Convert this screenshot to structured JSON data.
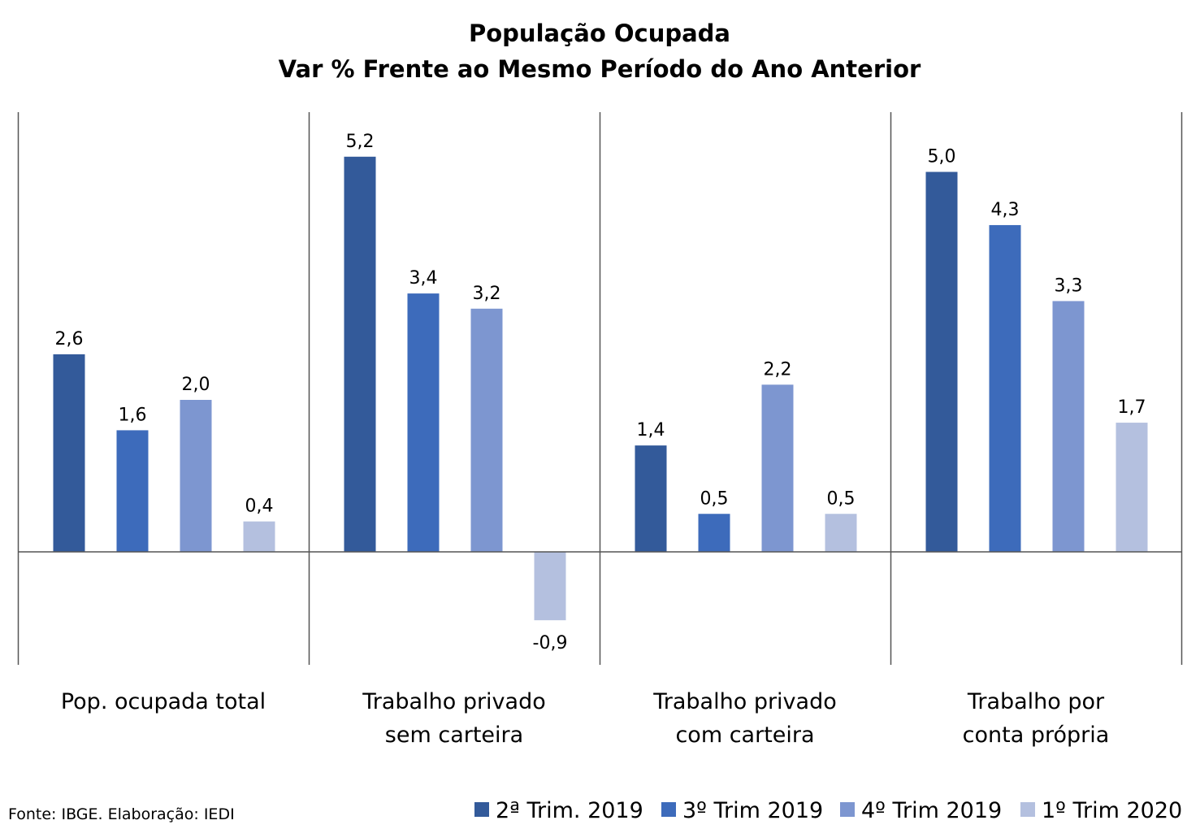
{
  "source": "Fonte: IBGE. Elaboração: IEDI",
  "chart_data": {
    "type": "bar",
    "title": [
      "População Ocupada",
      "Var % Frente ao Mesmo Período do Ano Anterior"
    ],
    "xlabel": "",
    "ylabel": "",
    "grid": false,
    "legend_position": "bottom-right",
    "categories": [
      [
        "Pop. ocupada total"
      ],
      [
        "Trabalho privado",
        "sem carteira"
      ],
      [
        "Trabalho privado",
        "com carteira"
      ],
      [
        "Trabalho por",
        "conta própria"
      ]
    ],
    "series": [
      {
        "name": "2ª Trim. 2019",
        "color": "#335a9a",
        "values": [
          2.6,
          5.2,
          1.4,
          5.0
        ],
        "labels": [
          "2,6",
          "5,2",
          "1,4",
          "5,0"
        ]
      },
      {
        "name": "3º Trim 2019",
        "color": "#3d6bbb",
        "values": [
          1.6,
          3.4,
          0.5,
          4.3
        ],
        "labels": [
          "1,6",
          "3,4",
          "0,5",
          "4,3"
        ]
      },
      {
        "name": "4º Trim 2019",
        "color": "#7d96d0",
        "values": [
          2.0,
          3.2,
          2.2,
          3.3
        ],
        "labels": [
          "2,0",
          "3,2",
          "2,2",
          "3,3"
        ]
      },
      {
        "name": "1º Trim 2020",
        "color": "#b4c0df",
        "values": [
          0.4,
          -0.9,
          0.5,
          1.7
        ],
        "labels": [
          "0,4",
          "-0,9",
          "0,5",
          "1,7"
        ]
      }
    ]
  }
}
